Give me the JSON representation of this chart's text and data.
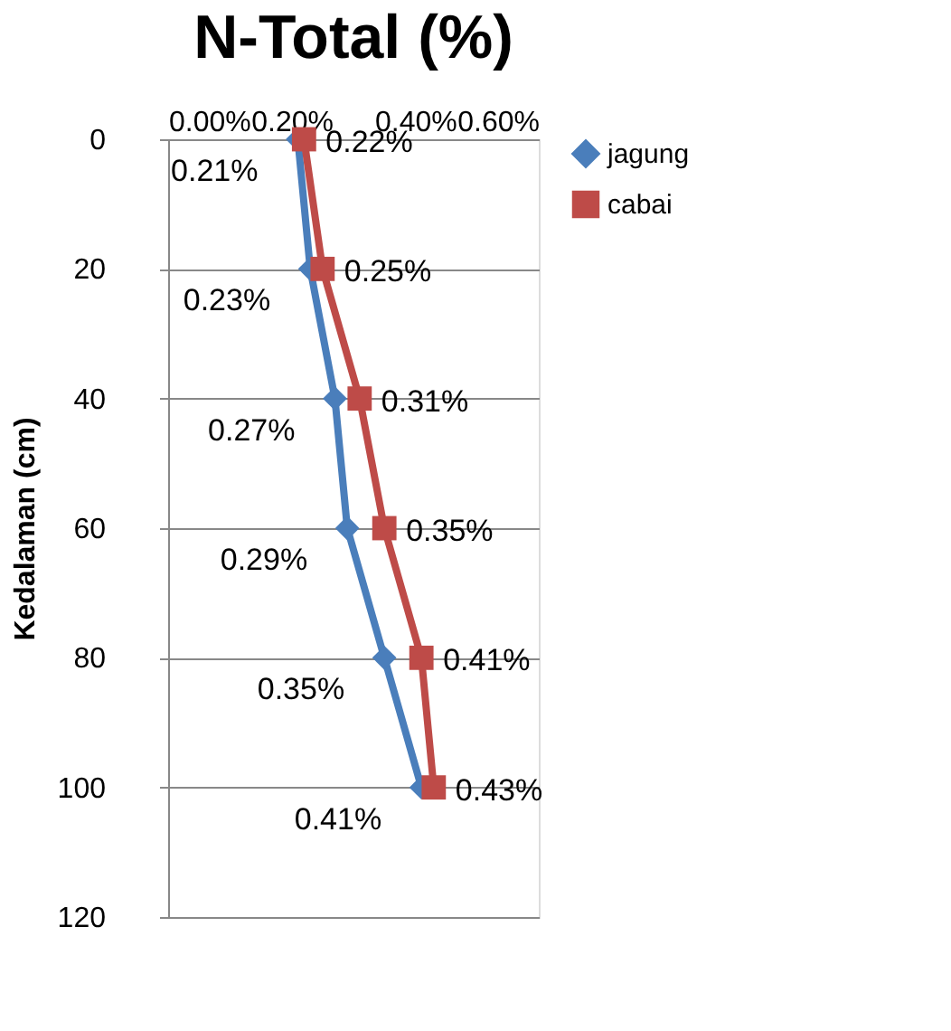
{
  "chart_data": {
    "type": "line",
    "title": "N-Total (%)",
    "ylabel": "Kedalaman (cm)",
    "orientation": "horizontal",
    "xlim": [
      0,
      0.6
    ],
    "xticks": [
      {
        "value": 0,
        "label": "0.00%"
      },
      {
        "value": 0.2,
        "label": "0.20%"
      },
      {
        "value": 0.4,
        "label": "0.40%"
      },
      {
        "value": 0.6,
        "label": "0.60%"
      }
    ],
    "ylim": [
      120,
      0
    ],
    "yticks": [
      0,
      20,
      40,
      60,
      80,
      100,
      120
    ],
    "grid": "y",
    "legend": "right",
    "series": [
      {
        "name": "jagung",
        "color": "#4a7ebb",
        "marker": "diamond",
        "x": [
          0,
          20,
          40,
          60,
          80,
          100
        ],
        "values": [
          0.21,
          0.23,
          0.27,
          0.29,
          0.35,
          0.41
        ],
        "value_labels": [
          "0.21%",
          "0.23%",
          "0.27%",
          "0.29%",
          "0.35%",
          "0.41%"
        ]
      },
      {
        "name": "cabai",
        "color": "#be4b48",
        "marker": "square",
        "x": [
          0,
          20,
          40,
          60,
          80,
          100
        ],
        "values": [
          0.22,
          0.25,
          0.31,
          0.35,
          0.41,
          0.43
        ],
        "value_labels": [
          "0.22%",
          "0.25%",
          "0.31%",
          "0.35%",
          "0.41%",
          "0.43%"
        ]
      }
    ]
  }
}
